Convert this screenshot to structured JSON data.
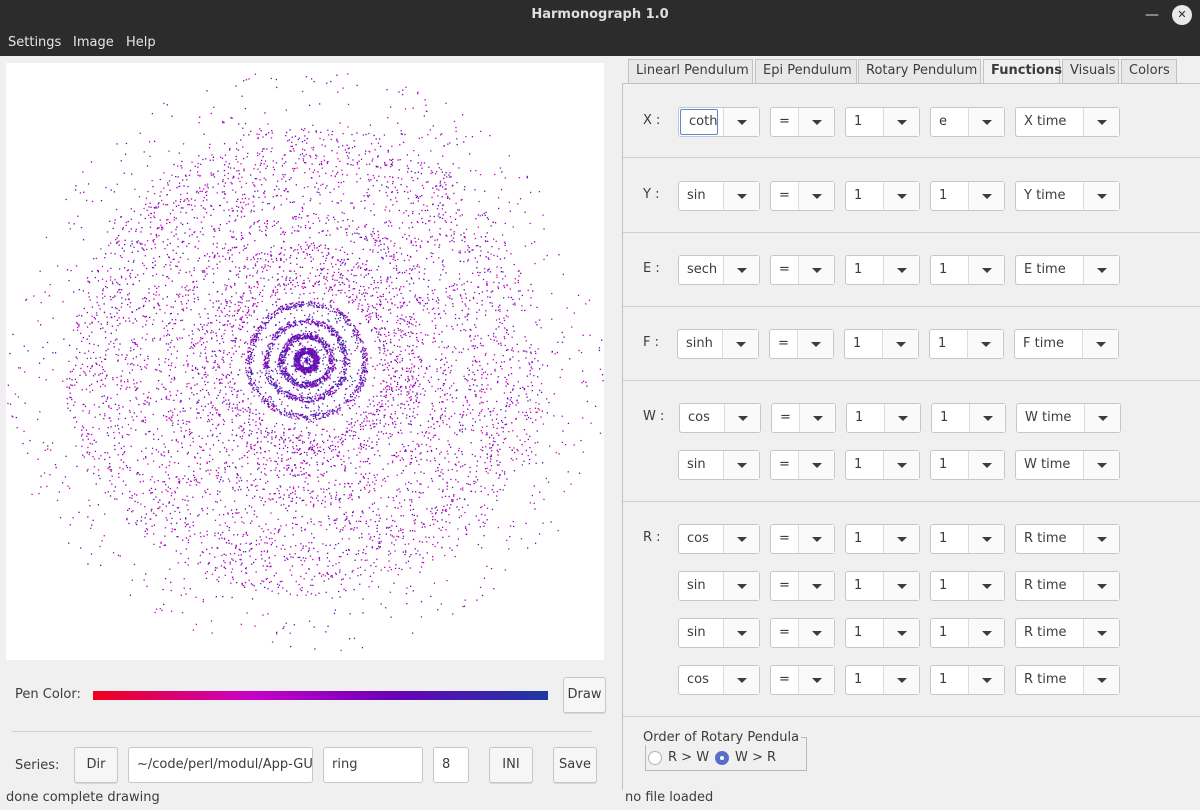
{
  "window": {
    "title": "Harmonograph 1.0",
    "minimize_glyph": "—",
    "close_glyph": "✕"
  },
  "menu": [
    "Settings",
    "Image",
    "Help"
  ],
  "pen": {
    "label": "Pen Color:",
    "gradient_colors": [
      "#f00019",
      "#c800c8",
      "#6b00b8",
      "#1c3aa0"
    ],
    "draw_label": "Draw"
  },
  "series": {
    "label": "Series:",
    "dir_label": "Dir",
    "path": "~/code/perl/modul/App-GU",
    "name": "ring",
    "number": "8",
    "ini_label": "INI",
    "save_label": "Save"
  },
  "status": {
    "left": "done complete drawing",
    "right": "no file loaded"
  },
  "tabs": [
    {
      "label": "Linearl Pendulum",
      "active": false
    },
    {
      "label": "Epi Pendulum",
      "active": false
    },
    {
      "label": "Rotary Pendulum",
      "active": false
    },
    {
      "label": "Functions",
      "active": true
    },
    {
      "label": "Visuals",
      "active": false
    },
    {
      "label": "Colors",
      "active": false
    }
  ],
  "functions": {
    "x": {
      "label": "X :",
      "rows": [
        [
          "coth",
          "=",
          "1",
          "e",
          "X time"
        ]
      ]
    },
    "y": {
      "label": "Y :",
      "rows": [
        [
          "sin",
          "=",
          "1",
          "1",
          "Y time"
        ]
      ]
    },
    "e": {
      "label": "E :",
      "rows": [
        [
          "sech",
          "=",
          "1",
          "1",
          "E time"
        ]
      ]
    },
    "f": {
      "label": "F :",
      "rows": [
        [
          "sinh",
          "=",
          "1",
          "1",
          "F time"
        ]
      ]
    },
    "w": {
      "label": "W :",
      "rows": [
        [
          "cos",
          "=",
          "1",
          "1",
          "W time"
        ],
        [
          "sin",
          "=",
          "1",
          "1",
          "W time"
        ]
      ]
    },
    "r": {
      "label": "R :",
      "rows": [
        [
          "cos",
          "=",
          "1",
          "1",
          "R time"
        ],
        [
          "sin",
          "=",
          "1",
          "1",
          "R time"
        ],
        [
          "sin",
          "=",
          "1",
          "1",
          "R time"
        ],
        [
          "cos",
          "=",
          "1",
          "1",
          "R time"
        ]
      ]
    }
  },
  "order": {
    "title": "Order of Rotary Pendula",
    "options": [
      {
        "label": "R > W",
        "checked": false
      },
      {
        "label": "W > R",
        "checked": true
      }
    ]
  }
}
